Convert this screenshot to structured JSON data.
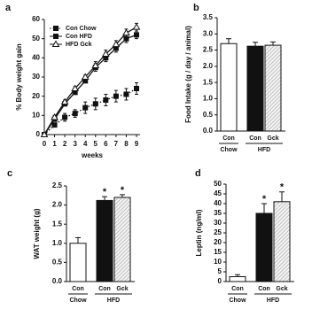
{
  "chart_data": [
    {
      "type": "line",
      "label": "a",
      "ylabel": "% Body weight gain",
      "xlabel": "weeks",
      "x": [
        0,
        1,
        2,
        3,
        4,
        5,
        6,
        7,
        8,
        9
      ],
      "xlim": [
        0,
        9
      ],
      "xticks": [
        0,
        1,
        2,
        3,
        4,
        5,
        6,
        7,
        8,
        9
      ],
      "ylim": [
        0,
        60
      ],
      "yticks": [
        0,
        10,
        20,
        30,
        40,
        50,
        60
      ],
      "legend": "upper left",
      "series": [
        {
          "name": "Con Chow",
          "color": "#111111",
          "linestyle": "dotted",
          "marker": "square",
          "filled": true,
          "values": [
            0,
            5,
            9,
            11,
            14,
            16,
            18,
            20,
            21,
            24
          ],
          "errors": [
            0,
            1,
            2,
            2,
            3,
            3,
            3,
            3,
            3,
            3
          ]
        },
        {
          "name": "Con HFD",
          "color": "#111111",
          "linestyle": "solid",
          "marker": "square",
          "filled": true,
          "values": [
            0,
            8,
            16,
            22,
            28,
            35,
            40,
            45,
            50,
            52
          ],
          "errors": [
            0,
            1,
            1,
            1,
            1,
            2,
            2,
            2,
            2,
            2
          ]
        },
        {
          "name": "HFD Gck",
          "color": "#111111",
          "linestyle": "solid",
          "marker": "triangle",
          "filled": false,
          "values": [
            0,
            9,
            17,
            24,
            30,
            36,
            42,
            47,
            53,
            56
          ],
          "errors": [
            0,
            1,
            1,
            1,
            1,
            2,
            2,
            2,
            2,
            2
          ]
        }
      ]
    },
    {
      "type": "bar",
      "label": "b",
      "ylabel": "Food Intake  (g / day / animal)",
      "groups": [
        {
          "name": "Chow",
          "categories": [
            "Con"
          ]
        },
        {
          "name": "HFD",
          "categories": [
            "Con",
            "Gck"
          ]
        }
      ],
      "values": [
        2.7,
        2.62,
        2.65
      ],
      "errors": [
        0.15,
        0.12,
        0.1
      ],
      "colors": [
        "#ffffff",
        "#111111",
        "#d8d8d8"
      ],
      "hatch": [
        false,
        false,
        true
      ],
      "ylim": [
        0,
        3.5
      ],
      "yticks": [
        {
          "value": 0,
          "label": "0.0"
        },
        0.5,
        {
          "value": 1,
          "label": "1.0"
        },
        1.5,
        {
          "value": 2,
          "label": "2.0"
        },
        2.5,
        {
          "value": 3,
          "label": "3.0"
        },
        3.5
      ],
      "significance": [
        null,
        null,
        null
      ]
    },
    {
      "type": "bar",
      "label": "c",
      "ylabel": "WAT weight (g)",
      "groups": [
        {
          "name": "Chow",
          "categories": [
            "Con"
          ]
        },
        {
          "name": "HFD",
          "categories": [
            "Con",
            "Gck"
          ]
        }
      ],
      "values": [
        1.0,
        2.12,
        2.2
      ],
      "errors": [
        0.15,
        0.1,
        0.07
      ],
      "colors": [
        "#ffffff",
        "#111111",
        "#d8d8d8"
      ],
      "hatch": [
        false,
        false,
        true
      ],
      "ylim": [
        0,
        2.5
      ],
      "yticks": [
        {
          "value": 0,
          "label": "0.0"
        },
        0.5,
        {
          "value": 1,
          "label": "1.0"
        },
        1.5,
        {
          "value": 2,
          "label": "2.0"
        },
        2.5
      ],
      "significance": [
        null,
        "*",
        "*"
      ]
    },
    {
      "type": "bar",
      "label": "d",
      "ylabel": "Leptin (ng/ml)",
      "groups": [
        {
          "name": "Chow",
          "categories": [
            "Con"
          ]
        },
        {
          "name": "HFD",
          "categories": [
            "Con",
            "Gck"
          ]
        }
      ],
      "values": [
        2.5,
        35,
        41
      ],
      "errors": [
        1,
        5,
        5
      ],
      "colors": [
        "#ffffff",
        "#111111",
        "#d8d8d8"
      ],
      "hatch": [
        false,
        false,
        true
      ],
      "ylim": [
        0,
        50
      ],
      "yticks": [
        0,
        5,
        10,
        15,
        20,
        25,
        30,
        35,
        40,
        45,
        50
      ],
      "significance": [
        null,
        "*",
        "*"
      ]
    }
  ]
}
